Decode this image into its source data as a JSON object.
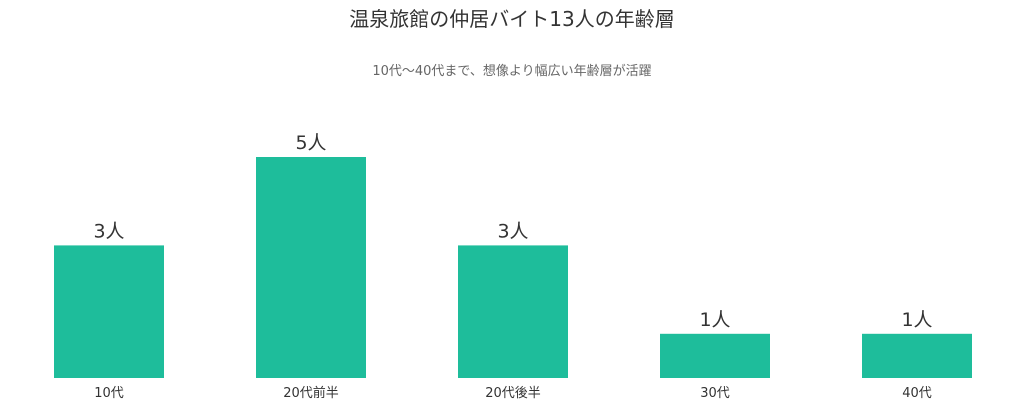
{
  "chart_data": {
    "type": "bar",
    "title": "温泉旅館の仲居バイト13人の年齢層",
    "subtitle": "10代〜40代まで、想像より幅広い年齢層が活躍",
    "categories": [
      "10代",
      "20代前半",
      "20代後半",
      "30代",
      "40代"
    ],
    "values": [
      3,
      5,
      3,
      1,
      1
    ],
    "value_unit": "人",
    "xlabel": "",
    "ylabel": "",
    "ylim": [
      0,
      5
    ],
    "grid": false,
    "legend": "none",
    "colors": {
      "bar": "#1ebd9b",
      "text": "#333333",
      "subtext": "#666666"
    }
  }
}
